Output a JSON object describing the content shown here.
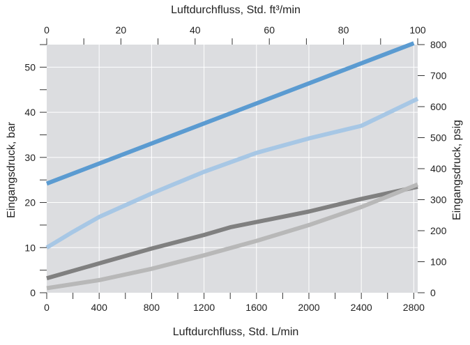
{
  "chart_data": {
    "type": "line",
    "title": "",
    "xlabel_bottom": "Luftdurchfluss, Std. L/min",
    "xlabel_top": "Luftdurchfluss, Std. ft³/min",
    "ylabel_left": "Eingangsdruck, bar",
    "ylabel_right": "Eingangsdruck, psig",
    "x_bottom": {
      "min": 0,
      "max": 2830,
      "ticks": [
        0,
        400,
        800,
        1200,
        1600,
        2000,
        2400,
        2800
      ]
    },
    "x_top": {
      "min": 0,
      "max": 100,
      "ticks": [
        0,
        20,
        40,
        60,
        80,
        100
      ]
    },
    "y_left": {
      "min": 0,
      "max": 55,
      "ticks": [
        0,
        10,
        20,
        30,
        40,
        50
      ]
    },
    "y_right": {
      "min": 0,
      "max": 800,
      "ticks": [
        0,
        100,
        200,
        300,
        400,
        500,
        600,
        700,
        800
      ]
    },
    "grid": true,
    "background": "#dcdde0",
    "series": [
      {
        "color": "#5b9bd1",
        "x": [
          0,
          2800
        ],
        "y": [
          24.2,
          55.3
        ]
      },
      {
        "color": "#a7c7e5",
        "x": [
          0,
          200,
          400,
          800,
          1200,
          1600,
          2000,
          2400,
          2830
        ],
        "y": [
          10,
          13.5,
          16.8,
          22,
          26.8,
          31,
          34.2,
          37,
          43
        ]
      },
      {
        "color": "#808080",
        "x": [
          0,
          400,
          800,
          1200,
          1400,
          2000,
          2400,
          2830
        ],
        "y": [
          3.2,
          6.5,
          9.8,
          12.8,
          14.5,
          18,
          20.8,
          23.5
        ]
      },
      {
        "color": "#b8b8b8",
        "x": [
          0,
          400,
          800,
          1200,
          1600,
          2000,
          2400,
          2830
        ],
        "y": [
          1,
          2.8,
          5.3,
          8.3,
          11.5,
          15,
          19,
          24
        ]
      }
    ]
  }
}
